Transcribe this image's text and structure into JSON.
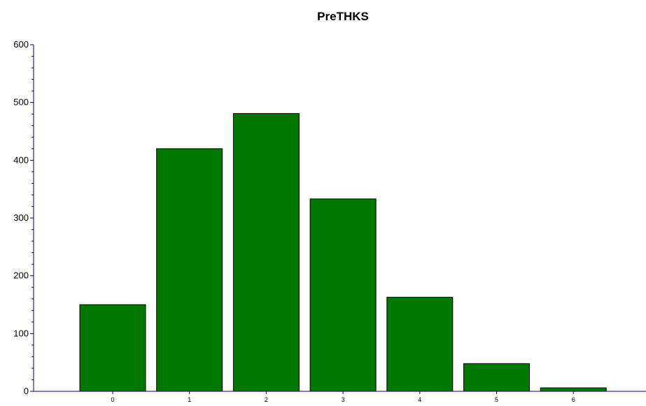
{
  "chart_data": {
    "type": "bar",
    "title": "PreTHKS",
    "xlabel": "",
    "ylabel": "",
    "categories": [
      "0",
      "1",
      "2",
      "3",
      "4",
      "5",
      "6"
    ],
    "values": [
      150,
      420,
      481,
      333,
      163,
      48,
      6
    ],
    "ylim": [
      0,
      600
    ],
    "yticks": [
      0,
      100,
      200,
      300,
      400,
      500,
      600
    ],
    "grid": false,
    "colors": {
      "bar": "#007800",
      "bar_edge": "#000000",
      "axis": "#000080"
    }
  }
}
